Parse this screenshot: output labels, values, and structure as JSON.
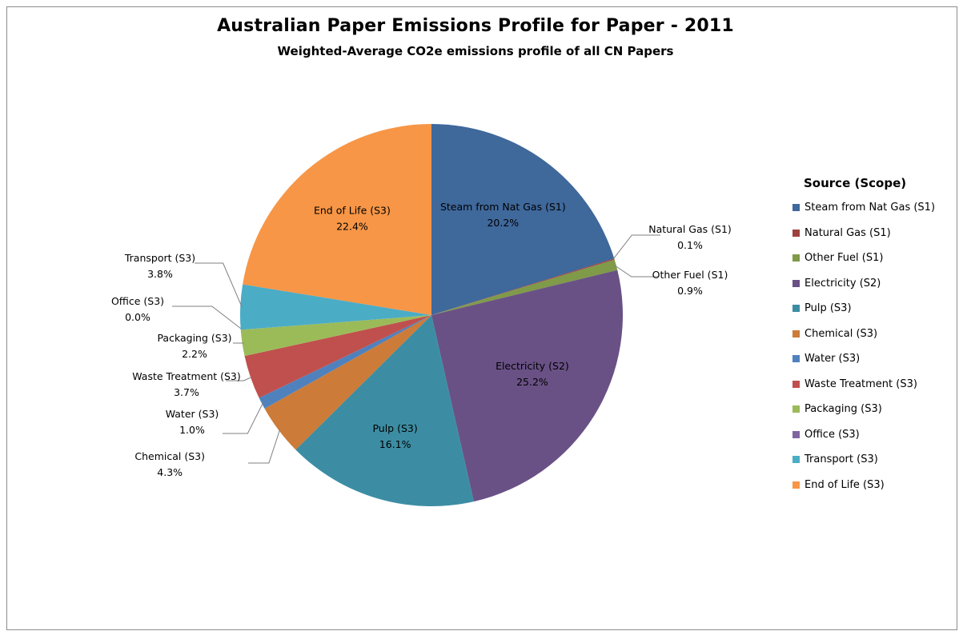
{
  "chart_data": {
    "type": "pie",
    "title": "Australian Paper Emissions Profile for Paper - 2011",
    "subtitle": "Weighted-Average CO2e emissions profile of all CN Papers",
    "legend_title": "Source (Scope)",
    "legend_position": "right",
    "slices": [
      {
        "label": "Steam from Nat Gas (S1)",
        "value": 20.2,
        "display": "20.2%",
        "color": "#3F689B"
      },
      {
        "label": "Natural Gas (S1)",
        "value": 0.1,
        "display": "0.1%",
        "color": "#9E413E"
      },
      {
        "label": "Other Fuel (S1)",
        "value": 0.9,
        "display": "0.9%",
        "color": "#7F9A48"
      },
      {
        "label": "Electricity (S2)",
        "value": 25.2,
        "display": "25.2%",
        "color": "#695185"
      },
      {
        "label": "Pulp (S3)",
        "value": 16.1,
        "display": "16.1%",
        "color": "#3C8DA3"
      },
      {
        "label": "Chemical (S3)",
        "value": 4.3,
        "display": "4.3%",
        "color": "#CC7B38"
      },
      {
        "label": "Water (S3)",
        "value": 1.0,
        "display": "1.0%",
        "color": "#4F81BD"
      },
      {
        "label": "Waste Treatment (S3)",
        "value": 3.7,
        "display": "3.7%",
        "color": "#C0504D"
      },
      {
        "label": "Packaging (S3)",
        "value": 2.2,
        "display": "2.2%",
        "color": "#9BBB59"
      },
      {
        "label": "Office (S3)",
        "value": 0.0,
        "display": "0.0%",
        "color": "#8064A2"
      },
      {
        "label": "Transport (S3)",
        "value": 3.8,
        "display": "3.8%",
        "color": "#4BACC6"
      },
      {
        "label": "End of Life (S3)",
        "value": 22.4,
        "display": "22.4%",
        "color": "#F79646"
      }
    ]
  }
}
